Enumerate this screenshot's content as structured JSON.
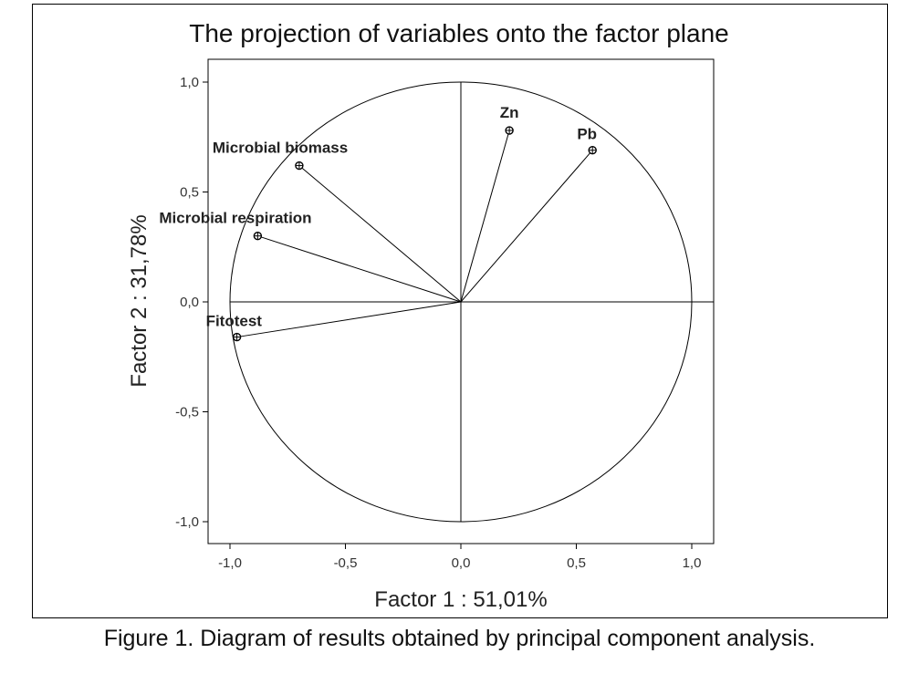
{
  "caption": "Figure 1. Diagram of results obtained by principal component analysis.",
  "chart_data": {
    "type": "scatter",
    "title": "The projection of variables onto the factor plane",
    "xlabel": "Factor 1 : 51,01%",
    "ylabel": "Factor 2 : 31,78%",
    "xlim": [
      -1.1,
      1.1
    ],
    "ylim": [
      -1.1,
      1.1
    ],
    "xticks": [
      "-1,0",
      "-0,5",
      "0,0",
      "0,5",
      "1,0"
    ],
    "yticks": [
      "1,0",
      "0,5",
      "0,0",
      "-0,5",
      "-1,0"
    ],
    "tick_values": [
      -1.0,
      -0.5,
      0.0,
      0.5,
      1.0
    ],
    "unit_circle": true,
    "grid": false,
    "points": [
      {
        "label": "Zn",
        "x": 0.21,
        "y": 0.78
      },
      {
        "label": "Pb",
        "x": 0.57,
        "y": 0.69
      },
      {
        "label": "Microbial biomass",
        "x": -0.7,
        "y": 0.62
      },
      {
        "label": "Microbial respiration",
        "x": -0.88,
        "y": 0.3
      },
      {
        "label": "Fitotest",
        "x": -0.97,
        "y": -0.16
      }
    ]
  }
}
